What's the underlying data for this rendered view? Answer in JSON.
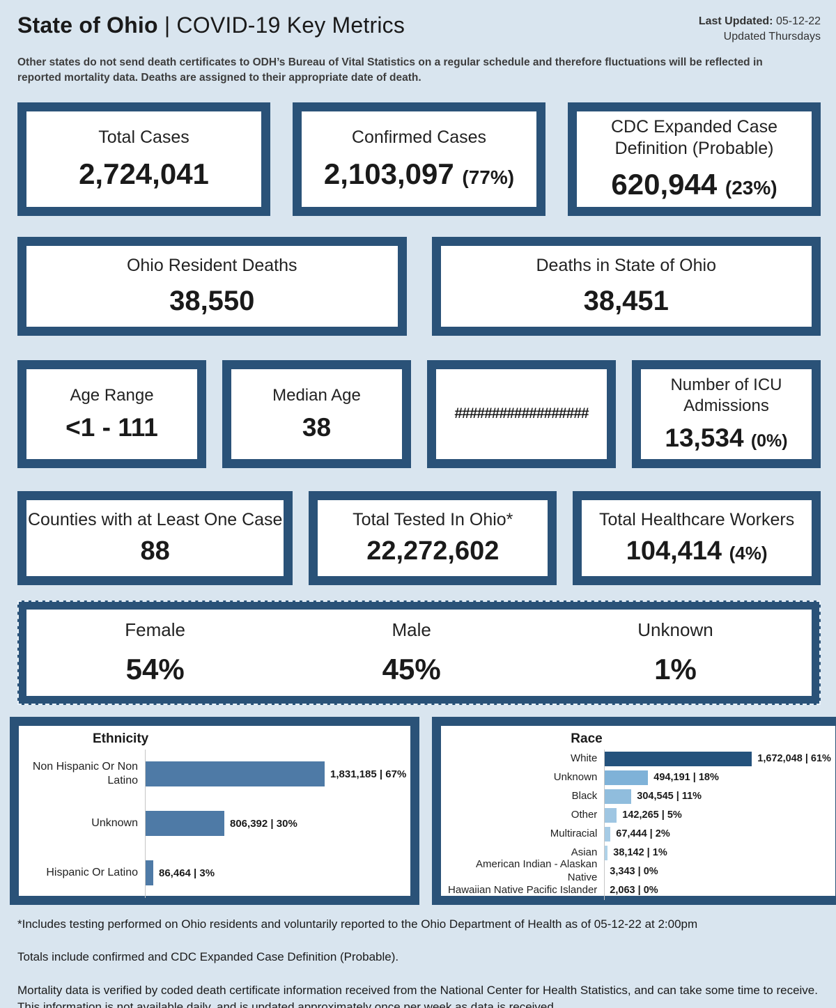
{
  "page": {
    "bg_color": "#d9e5ef",
    "accent_navy": "#2a5278",
    "card_bg": "#ffffff"
  },
  "header": {
    "title_bold": "State of Ohio",
    "title_rest": "| COVID-19 Key Metrics",
    "last_updated_label": "Last Updated:",
    "last_updated_value": "05-12-22",
    "updated_note": "Updated Thursdays",
    "disclaimer": "Other states do not send death certificates to ODH’s Bureau of Vital Statistics on a regular schedule and therefore fluctuations will be reflected in reported mortality data. Deaths are assigned to their appropriate date of death."
  },
  "metrics": {
    "total_cases": {
      "label": "Total Cases",
      "value": "2,724,041"
    },
    "confirmed_cases": {
      "label": "Confirmed Cases",
      "value": "2,103,097",
      "pct": "(77%)"
    },
    "cdc_expanded": {
      "label": "CDC Expanded Case Definition (Probable)",
      "value": "620,944",
      "pct": "(23%)"
    },
    "ohio_resident_deaths": {
      "label": "Ohio Resident Deaths",
      "value": "38,550"
    },
    "deaths_in_state": {
      "label": "Deaths in State of Ohio",
      "value": "38,451"
    },
    "age_range": {
      "label": "Age Range",
      "value": "<1 - 111"
    },
    "median_age": {
      "label": "Median Age",
      "value": "38"
    },
    "placeholder_cell": {
      "value": "##################"
    },
    "icu": {
      "label": "Number of ICU Admissions",
      "value": "13,534",
      "pct": "(0%)"
    },
    "counties": {
      "label": "Counties with at Least One Case",
      "value": "88"
    },
    "total_tested": {
      "label": "Total Tested In Ohio*",
      "value": "22,272,602"
    },
    "healthcare_workers": {
      "label": "Total Healthcare Workers",
      "value": "104,414",
      "pct": "(4%)"
    },
    "gender": [
      {
        "label": "Female",
        "value": "54%"
      },
      {
        "label": "Male",
        "value": "45%"
      },
      {
        "label": "Unknown",
        "value": "1%"
      }
    ]
  },
  "chart_data": [
    {
      "type": "bar",
      "orientation": "horizontal",
      "title": "Ethnicity",
      "categories": [
        "Non Hispanic Or Non Latino",
        "Unknown",
        "Hispanic Or Latino"
      ],
      "values": [
        1831185,
        806392,
        86464
      ],
      "value_labels": [
        "1,831,185 | 67%",
        "806,392 | 30%",
        "86,464 | 3%"
      ],
      "bar_colors": [
        "#4e7aa6",
        "#4e7aa6",
        "#4e7aa6"
      ],
      "xlim": [
        0,
        1831185
      ],
      "grid": false,
      "legend": "none"
    },
    {
      "type": "bar",
      "orientation": "horizontal",
      "title": "Race",
      "categories": [
        "White",
        "Unknown",
        "Black",
        "Other",
        "Multiracial",
        "Asian",
        "American Indian - Alaskan Native",
        "Hawaiian Native Pacific Islander"
      ],
      "values": [
        1672048,
        494191,
        304545,
        142265,
        67444,
        38142,
        3343,
        2063
      ],
      "value_labels": [
        "1,672,048 | 61%",
        "494,191 | 18%",
        "304,545 | 11%",
        "142,265 | 5%",
        "67,444 | 2%",
        "38,142 | 1%",
        "3,343 | 0%",
        "2,063 | 0%"
      ],
      "bar_colors": [
        "#24527c",
        "#7fb2d8",
        "#90bddd",
        "#9fc6e2",
        "#a6cbe5",
        "#afd2e8",
        "#b5d5ea",
        "#b5d5ea"
      ],
      "xlim": [
        0,
        1672048
      ],
      "grid": false,
      "legend": "none"
    }
  ],
  "footnotes": [
    "*Includes testing performed on Ohio residents and voluntarily reported to the Ohio Department of Health as of 05-12-22 at 2:00pm",
    "Totals include confirmed and CDC Expanded Case Definition (Probable).",
    "Mortality data is verified by coded death certificate information received from the National Center for Health Statistics, and can take some time to receive. This information is not available daily, and is updated approximately once per week as data is received."
  ]
}
